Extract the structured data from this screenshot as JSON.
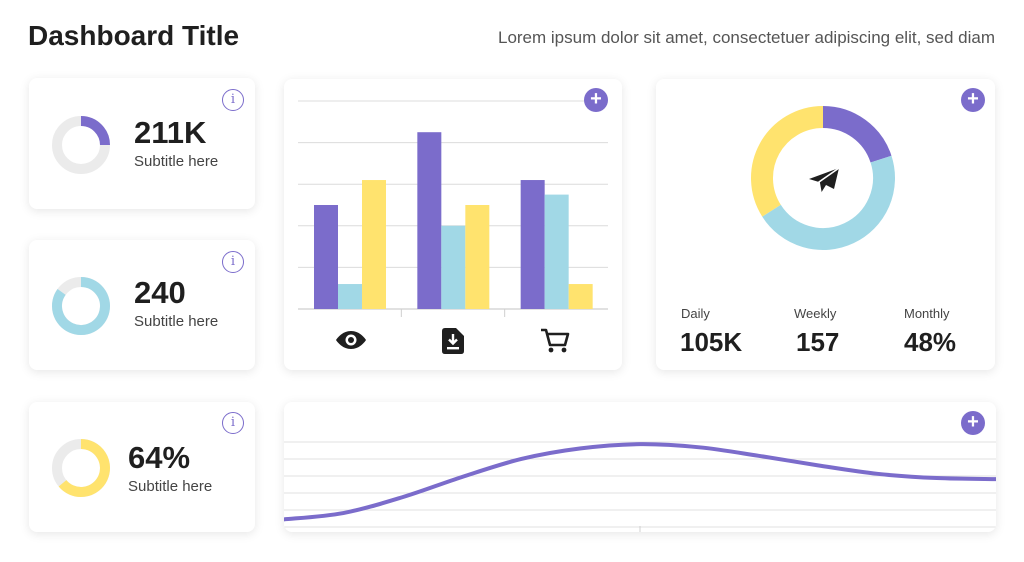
{
  "header": {
    "title": "Dashboard Title",
    "subtitle": "Lorem ipsum dolor sit amet, consectetuer adipiscing elit, sed diam"
  },
  "colors": {
    "purple": "#7b6ccb",
    "blue": "#a1d8e6",
    "yellow": "#ffe36e",
    "track": "#ebebeb"
  },
  "kpis": [
    {
      "value": "211K",
      "subtitle": "Subtitle here",
      "progress": 0.25,
      "color": "#7b6ccb",
      "info_icon": "i"
    },
    {
      "value": "240",
      "subtitle": "Subtitle here",
      "progress": 0.85,
      "color": "#a1d8e6",
      "info_icon": "i"
    },
    {
      "value": "64%",
      "subtitle": "Subtitle here",
      "progress": 0.64,
      "color": "#ffe36e",
      "info_icon": "i"
    }
  ],
  "bar_card": {
    "add_label": "+",
    "category_icons": [
      "eye-icon",
      "download-icon",
      "cart-icon"
    ]
  },
  "donut_card": {
    "add_label": "+",
    "center_icon": "paper-plane-icon",
    "stats": [
      {
        "label": "Daily",
        "value": "105K"
      },
      {
        "label": "Weekly",
        "value": "157"
      },
      {
        "label": "Monthly",
        "value": "48%"
      }
    ]
  },
  "line_card": {
    "add_label": "+"
  },
  "chart_data": [
    {
      "type": "bar",
      "categories": [
        "eye",
        "download",
        "cart"
      ],
      "series": [
        {
          "values": [
            5,
            8.5,
            6.2
          ],
          "color": "#7b6ccb"
        },
        {
          "values": [
            1.2,
            4,
            5.5
          ],
          "color": "#a1d8e6"
        },
        {
          "values": [
            6.2,
            5,
            1.2
          ],
          "color": "#ffe36e"
        }
      ],
      "ylim": [
        0,
        10
      ],
      "grid": true
    },
    {
      "type": "pie",
      "donut": true,
      "values": [
        20,
        46,
        34
      ],
      "colors": [
        "#7b6ccb",
        "#a1d8e6",
        "#ffe36e"
      ]
    },
    {
      "type": "line",
      "x": [
        0,
        1,
        2,
        3,
        4,
        5,
        6,
        7,
        8,
        9,
        10,
        11,
        12
      ],
      "y": [
        1.0,
        1.6,
        3.1,
        5.0,
        6.7,
        7.7,
        8.1,
        7.8,
        7.0,
        6.1,
        5.3,
        4.9,
        4.8
      ],
      "ylim": [
        0,
        10
      ],
      "color": "#7b6ccb",
      "grid": true
    }
  ]
}
